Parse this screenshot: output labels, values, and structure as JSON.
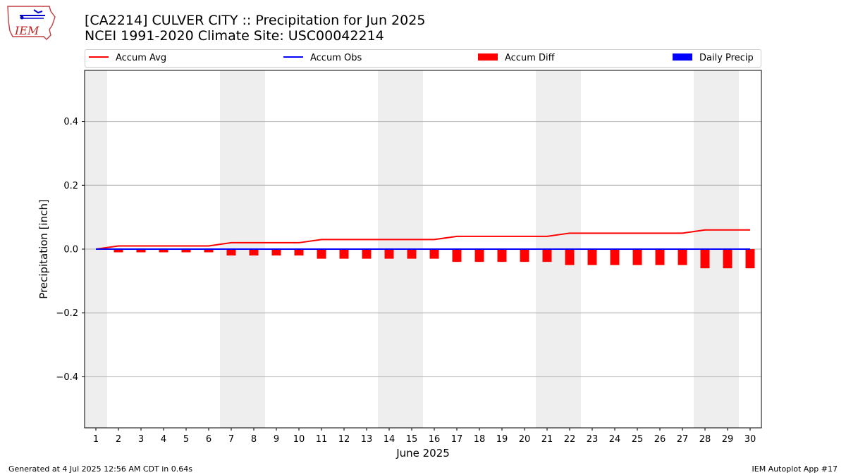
{
  "header": {
    "title_line1": "[CA2214] CULVER CITY :: Precipitation for Jun 2025",
    "title_line2": "NCEI 1991-2020 Climate Site: USC00042214"
  },
  "logo": {
    "text": "IEM"
  },
  "footer": {
    "generated": "Generated at 4 Jul 2025 12:56 AM CDT in 0.64s",
    "app": "IEM Autoplot App #17"
  },
  "chart_data": {
    "type": "bar",
    "xlabel": "June 2025",
    "ylabel": "Precipitation [inch]",
    "ylim": [
      -0.56,
      0.56
    ],
    "yticks": [
      -0.4,
      -0.2,
      0.0,
      0.2,
      0.4
    ],
    "ytick_labels": [
      "−0.4",
      "−0.2",
      "0.0",
      "0.2",
      "0.4"
    ],
    "grid": "horizontal",
    "legend_position": "top",
    "weekend_days": [
      1,
      7,
      8,
      14,
      15,
      21,
      22,
      28,
      29
    ],
    "categories": [
      1,
      2,
      3,
      4,
      5,
      6,
      7,
      8,
      9,
      10,
      11,
      12,
      13,
      14,
      15,
      16,
      17,
      18,
      19,
      20,
      21,
      22,
      23,
      24,
      25,
      26,
      27,
      28,
      29,
      30
    ],
    "series": [
      {
        "name": "Accum Avg",
        "kind": "line",
        "color": "#ff0000",
        "values": [
          0.0,
          0.01,
          0.01,
          0.01,
          0.01,
          0.01,
          0.02,
          0.02,
          0.02,
          0.02,
          0.03,
          0.03,
          0.03,
          0.03,
          0.03,
          0.03,
          0.04,
          0.04,
          0.04,
          0.04,
          0.04,
          0.05,
          0.05,
          0.05,
          0.05,
          0.05,
          0.05,
          0.06,
          0.06,
          0.06
        ]
      },
      {
        "name": "Accum Obs",
        "kind": "line",
        "color": "#0000ff",
        "values": [
          0,
          0,
          0,
          0,
          0,
          0,
          0,
          0,
          0,
          0,
          0,
          0,
          0,
          0,
          0,
          0,
          0,
          0,
          0,
          0,
          0,
          0,
          0,
          0,
          0,
          0,
          0,
          0,
          0,
          0
        ]
      },
      {
        "name": "Accum Diff",
        "kind": "bar",
        "color": "#ff0000",
        "values": [
          0.0,
          -0.01,
          -0.01,
          -0.01,
          -0.01,
          -0.01,
          -0.02,
          -0.02,
          -0.02,
          -0.02,
          -0.03,
          -0.03,
          -0.03,
          -0.03,
          -0.03,
          -0.03,
          -0.04,
          -0.04,
          -0.04,
          -0.04,
          -0.04,
          -0.05,
          -0.05,
          -0.05,
          -0.05,
          -0.05,
          -0.05,
          -0.06,
          -0.06,
          -0.06
        ]
      },
      {
        "name": "Daily Precip",
        "kind": "bar",
        "color": "#0000ff",
        "values": [
          0,
          0,
          0,
          0,
          0,
          0,
          0,
          0,
          0,
          0,
          0,
          0,
          0,
          0,
          0,
          0,
          0,
          0,
          0,
          0,
          0,
          0,
          0,
          0,
          0,
          0,
          0,
          0,
          0,
          0
        ]
      }
    ]
  }
}
